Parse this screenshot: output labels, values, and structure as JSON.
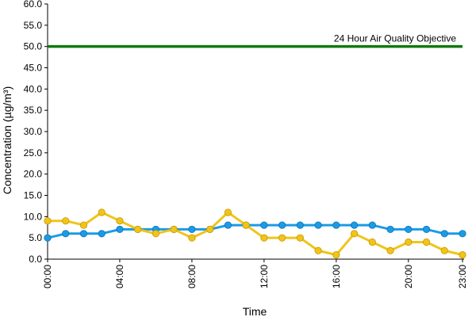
{
  "chart_data": {
    "type": "line",
    "xlabel": "Time",
    "ylabel": "Concentration (µg/m³)",
    "ylim": [
      0,
      60
    ],
    "y_ticks": [
      "0.0",
      "5.0",
      "10.0",
      "15.0",
      "20.0",
      "25.0",
      "30.0",
      "35.0",
      "40.0",
      "45.0",
      "50.0",
      "55.0",
      "60.0"
    ],
    "x_categories": [
      "00:00",
      "01:00",
      "02:00",
      "03:00",
      "04:00",
      "05:00",
      "06:00",
      "07:00",
      "08:00",
      "09:00",
      "10:00",
      "11:00",
      "12:00",
      "13:00",
      "14:00",
      "15:00",
      "16:00",
      "17:00",
      "18:00",
      "19:00",
      "20:00",
      "21:00",
      "22:00",
      "23:00"
    ],
    "x_tick_labels": [
      "00:00",
      "04:00",
      "08:00",
      "12:00",
      "16:00",
      "20:00",
      "23:00"
    ],
    "grid": false,
    "series": [
      {
        "color": "#1a9be6",
        "values": [
          5,
          6,
          6,
          6,
          7,
          7,
          7,
          7,
          7,
          7,
          8,
          8,
          8,
          8,
          8,
          8,
          8,
          8,
          8,
          7,
          7,
          7,
          6,
          6
        ]
      },
      {
        "color": "#f0c419",
        "values": [
          9,
          9,
          8,
          11,
          9,
          7,
          6,
          7,
          5,
          7,
          11,
          8,
          5,
          5,
          5,
          2,
          1,
          6,
          4,
          2,
          4,
          4,
          2,
          1
        ]
      }
    ],
    "reference_line": {
      "label": "24 Hour Air Quality Objective",
      "value": 50,
      "color": "#0f7a0f"
    }
  }
}
